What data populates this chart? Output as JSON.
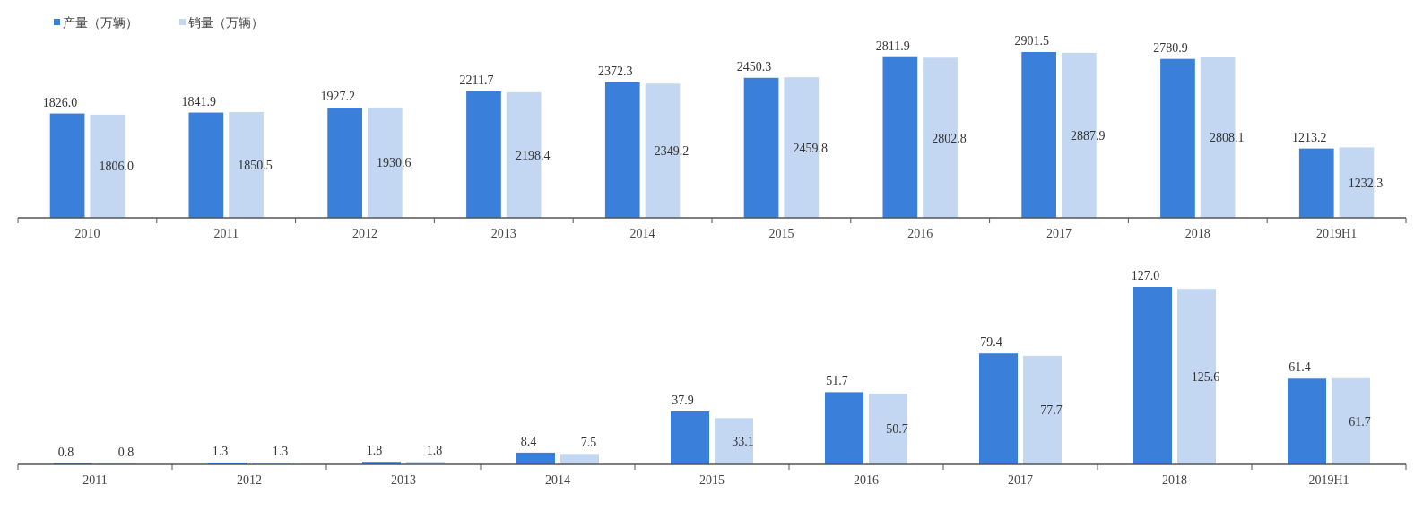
{
  "chart_data": [
    {
      "type": "bar",
      "categories": [
        "2010",
        "2011",
        "2012",
        "2013",
        "2014",
        "2015",
        "2016",
        "2017",
        "2018",
        "2019H1"
      ],
      "series": [
        {
          "name": "产量（万辆）",
          "color": "#3a7fd9",
          "values": [
            1826.0,
            1841.9,
            1927.2,
            2211.7,
            2372.3,
            2450.3,
            2811.9,
            2901.5,
            2780.9,
            1213.2
          ],
          "value_labels": [
            "1826.0",
            "1841.9",
            "1927.2",
            "2211.7",
            "2372.3",
            "2450.3",
            "2811.9",
            "2901.5",
            "2780.9",
            "1213.2"
          ]
        },
        {
          "name": "销量（万辆）",
          "color": "#c3d7f2",
          "values": [
            1806.0,
            1850.5,
            1930.6,
            2198.4,
            2349.2,
            2459.8,
            2802.8,
            2887.9,
            2808.1,
            1232.3
          ],
          "value_labels": [
            "1806.0",
            "1850.5",
            "1930.6",
            "2198.4",
            "2349.2",
            "2459.8",
            "2802.8",
            "2887.9",
            "2808.1",
            "1232.3"
          ]
        }
      ],
      "legend": "top left"
    },
    {
      "type": "bar",
      "categories": [
        "2011",
        "2012",
        "2013",
        "2014",
        "2015",
        "2016",
        "2017",
        "2018",
        "2019H1"
      ],
      "series": [
        {
          "color": "#3a7fd9",
          "values": [
            0.8,
            1.3,
            1.8,
            8.4,
            37.9,
            51.7,
            79.4,
            127.0,
            61.4
          ],
          "value_labels": [
            "0.8",
            "1.3",
            "1.8",
            "8.4",
            "37.9",
            "51.7",
            "79.4",
            "127.0",
            "61.4"
          ]
        },
        {
          "color": "#c3d7f2",
          "values": [
            0.8,
            1.3,
            1.8,
            7.5,
            33.1,
            50.7,
            77.7,
            125.6,
            61.7
          ],
          "value_labels": [
            "0.8",
            "1.3",
            "1.8",
            "7.5",
            "33.1",
            "50.7",
            "77.7",
            "125.6",
            "61.7"
          ]
        }
      ]
    }
  ]
}
